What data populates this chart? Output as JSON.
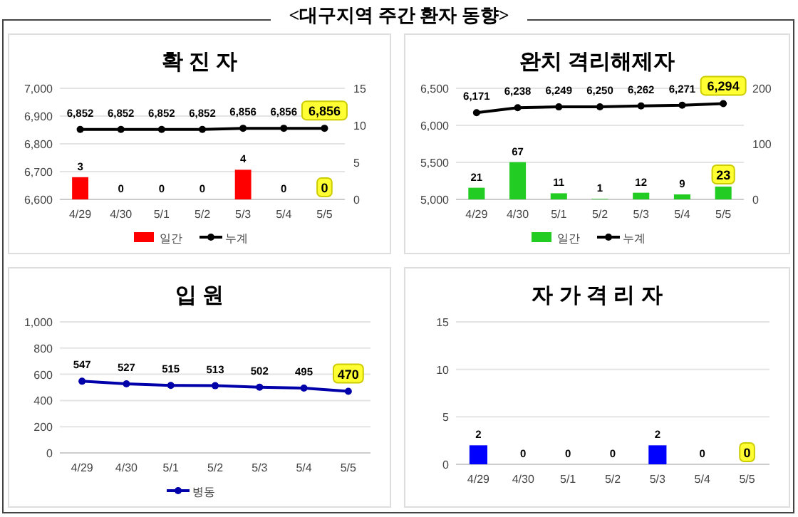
{
  "chart_data": [
    {
      "type": "bar",
      "title": "확 진 자",
      "annotations": [
        "<대구지역 주간 환자 동향>"
      ],
      "categories": [
        "4/29",
        "4/30",
        "5/1",
        "5/2",
        "5/3",
        "5/4",
        "5/5"
      ],
      "series": [
        {
          "name": "일간",
          "axis": "y2",
          "color": "#ff0000",
          "values": [
            3,
            0,
            0,
            0,
            4,
            0,
            0
          ],
          "value_labels": [
            "3",
            "0",
            "0",
            "0",
            "4",
            "0",
            "0"
          ]
        },
        {
          "name": "누계",
          "type": "line",
          "color": "#000000",
          "values": [
            6852,
            6852,
            6852,
            6852,
            6856,
            6856,
            6856
          ],
          "value_labels": [
            "6,852",
            "6,852",
            "6,852",
            "6,852",
            "6,856",
            "6,856",
            "6,856"
          ]
        }
      ],
      "ylim": [
        6600,
        7000
      ],
      "yticks": [
        {
          "value": 6600,
          "label": "6,600"
        },
        {
          "value": 6700,
          "label": "6,700"
        },
        {
          "value": 6800,
          "label": "6,800"
        },
        {
          "value": 6900,
          "label": "6,900"
        },
        {
          "value": 7000,
          "label": "7,000"
        }
      ],
      "y2lim": [
        0,
        15
      ],
      "y2ticks": [
        0,
        5,
        10,
        15
      ],
      "grid": "y",
      "legend": "bottom",
      "marker": "circle"
    },
    {
      "type": "bar",
      "title": "완치 격리해제자",
      "categories": [
        "4/29",
        "4/30",
        "5/1",
        "5/2",
        "5/3",
        "5/4",
        "5/5"
      ],
      "series": [
        {
          "name": "일간",
          "axis": "y2",
          "color": "#22cc22",
          "values": [
            21,
            67,
            11,
            1,
            12,
            9,
            23
          ],
          "value_labels": [
            "21",
            "67",
            "11",
            "1",
            "12",
            "9",
            "23"
          ]
        },
        {
          "name": "누계",
          "type": "line",
          "color": "#000000",
          "values": [
            6171,
            6238,
            6249,
            6250,
            6262,
            6271,
            6294
          ],
          "value_labels": [
            "6,171",
            "6,238",
            "6,249",
            "6,250",
            "6,262",
            "6,271",
            "6,294"
          ]
        }
      ],
      "ylim": [
        5000,
        6500
      ],
      "yticks": [
        {
          "value": 5000,
          "label": "5,000"
        },
        {
          "value": 5500,
          "label": "5,500"
        },
        {
          "value": 6000,
          "label": "6,000"
        },
        {
          "value": 6500,
          "label": "6,500"
        }
      ],
      "y2lim": [
        0,
        200
      ],
      "y2ticks": [
        0,
        100,
        200
      ],
      "grid": "y",
      "legend": "bottom",
      "marker": "circle"
    },
    {
      "type": "line",
      "title": "입 원",
      "categories": [
        "4/29",
        "4/30",
        "5/1",
        "5/2",
        "5/3",
        "5/4",
        "5/5"
      ],
      "series": [
        {
          "name": "병동",
          "color": "#0000aa",
          "values": [
            547,
            527,
            515,
            513,
            502,
            495,
            470
          ],
          "value_labels": [
            "547",
            "527",
            "515",
            "513",
            "502",
            "495",
            "470"
          ]
        }
      ],
      "ylim": [
        0,
        1000
      ],
      "yticks": [
        0,
        200,
        400,
        600,
        800,
        {
          "value": 1000,
          "label": "1,000"
        }
      ],
      "grid": "y",
      "legend": "bottom",
      "marker": "circle"
    },
    {
      "type": "bar",
      "title": "자 가 격 리 자",
      "categories": [
        "4/29",
        "4/30",
        "5/1",
        "5/2",
        "5/3",
        "5/4",
        "5/5"
      ],
      "series": [
        {
          "color": "#0000ff",
          "values": [
            2,
            0,
            0,
            0,
            2,
            0,
            0
          ],
          "value_labels": [
            "2",
            "0",
            "0",
            "0",
            "2",
            "0",
            "0"
          ]
        }
      ],
      "ylim": [
        0,
        15
      ],
      "yticks": [
        0,
        5,
        10,
        15
      ],
      "grid": "y"
    }
  ]
}
